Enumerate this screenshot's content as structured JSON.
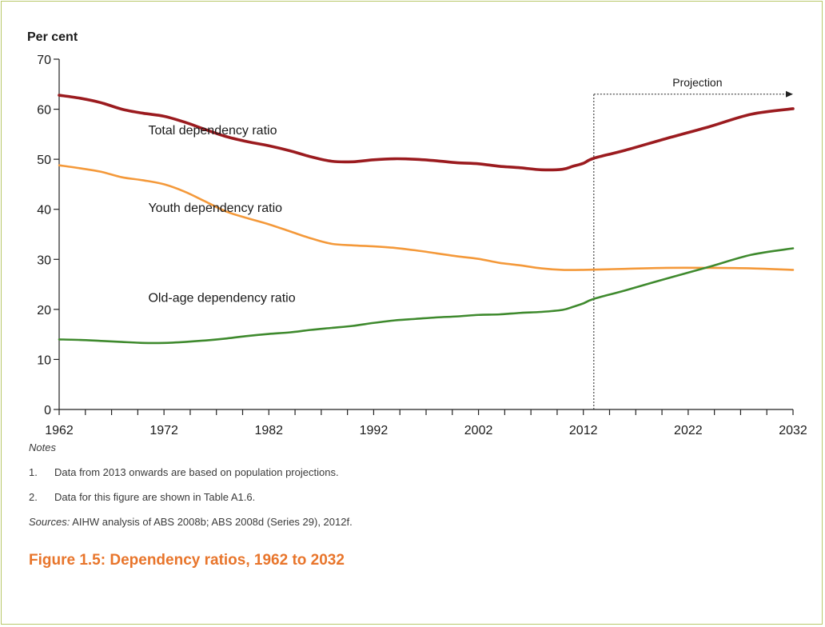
{
  "colors": {
    "frame": "#b9c86a",
    "total": "#9b1b1f",
    "youth": "#f4993a",
    "old_age": "#3f8a2e",
    "caption": "#e8752b"
  },
  "notes": {
    "heading": "Notes",
    "items": [
      {
        "num": "1.",
        "text": "Data from 2013 onwards are based on population projections."
      },
      {
        "num": "2.",
        "text": "Data for this figure are shown in Table A1.6."
      }
    ],
    "sources_label": "Sources:",
    "sources_text": " AIHW analysis of ABS 2008b; ABS 2008d (Series 29), 2012f."
  },
  "caption": "Figure 1.5: Dependency ratios, 1962 to 2032",
  "chart_data": {
    "type": "line",
    "ylabel": "Per cent",
    "xlabel": "",
    "xlim": [
      1962,
      2032
    ],
    "ylim": [
      0,
      70
    ],
    "yticks": [
      0,
      10,
      20,
      30,
      40,
      50,
      60,
      70
    ],
    "xtick_labels": [
      1962,
      1972,
      1982,
      1992,
      2002,
      2012,
      2022,
      2032
    ],
    "x_minor_step": 2.5,
    "projection": {
      "label": "Projection",
      "start_year": 2013,
      "end_year": 2032,
      "y_level": 63
    },
    "series": [
      {
        "name": "Total dependency ratio",
        "color_key": "total",
        "label_at": [
          1970.5,
          55
        ],
        "x": [
          1962,
          1964,
          1966,
          1968,
          1970,
          1972,
          1974,
          1976,
          1978,
          1980,
          1982,
          1984,
          1986,
          1988,
          1990,
          1992,
          1994,
          1996,
          1998,
          2000,
          2002,
          2004,
          2006,
          2008,
          2010,
          2011,
          2012,
          2013,
          2016,
          2020,
          2024,
          2028,
          2032
        ],
        "values": [
          62.8,
          62.2,
          61.3,
          60.0,
          59.2,
          58.6,
          57.4,
          55.9,
          54.5,
          53.5,
          52.7,
          51.7,
          50.5,
          49.6,
          49.5,
          49.9,
          50.1,
          50.0,
          49.7,
          49.3,
          49.1,
          48.6,
          48.3,
          47.9,
          48.0,
          48.6,
          49.2,
          50.2,
          51.8,
          54.2,
          56.5,
          59.0,
          60.1
        ]
      },
      {
        "name": "Youth dependency ratio",
        "color_key": "youth",
        "label_at": [
          1970.5,
          39.5
        ],
        "x": [
          1962,
          1964,
          1966,
          1968,
          1970,
          1972,
          1974,
          1976,
          1978,
          1980,
          1982,
          1984,
          1986,
          1988,
          1990,
          1992,
          1994,
          1996,
          1998,
          2000,
          2002,
          2004,
          2006,
          2008,
          2010,
          2012,
          2016,
          2020,
          2024,
          2028,
          2032
        ],
        "values": [
          48.8,
          48.2,
          47.5,
          46.4,
          45.8,
          45.0,
          43.5,
          41.5,
          39.5,
          38.2,
          37.0,
          35.6,
          34.2,
          33.1,
          32.8,
          32.6,
          32.3,
          31.8,
          31.2,
          30.6,
          30.1,
          29.3,
          28.8,
          28.2,
          27.9,
          27.9,
          28.1,
          28.3,
          28.3,
          28.2,
          27.9
        ]
      },
      {
        "name": "Old-age dependency ratio",
        "color_key": "old_age",
        "label_at": [
          1970.5,
          21.5
        ],
        "x": [
          1962,
          1964,
          1966,
          1968,
          1970,
          1972,
          1974,
          1976,
          1978,
          1980,
          1982,
          1984,
          1986,
          1988,
          1990,
          1992,
          1994,
          1996,
          1998,
          2000,
          2002,
          2004,
          2006,
          2008,
          2010,
          2011,
          2012,
          2013,
          2016,
          2020,
          2024,
          2028,
          2032
        ],
        "values": [
          14.0,
          13.9,
          13.7,
          13.5,
          13.3,
          13.3,
          13.5,
          13.8,
          14.2,
          14.7,
          15.1,
          15.4,
          15.9,
          16.3,
          16.7,
          17.3,
          17.8,
          18.1,
          18.4,
          18.6,
          18.9,
          19.0,
          19.3,
          19.5,
          19.9,
          20.5,
          21.2,
          22.1,
          23.8,
          26.2,
          28.5,
          30.9,
          32.2
        ]
      }
    ]
  }
}
